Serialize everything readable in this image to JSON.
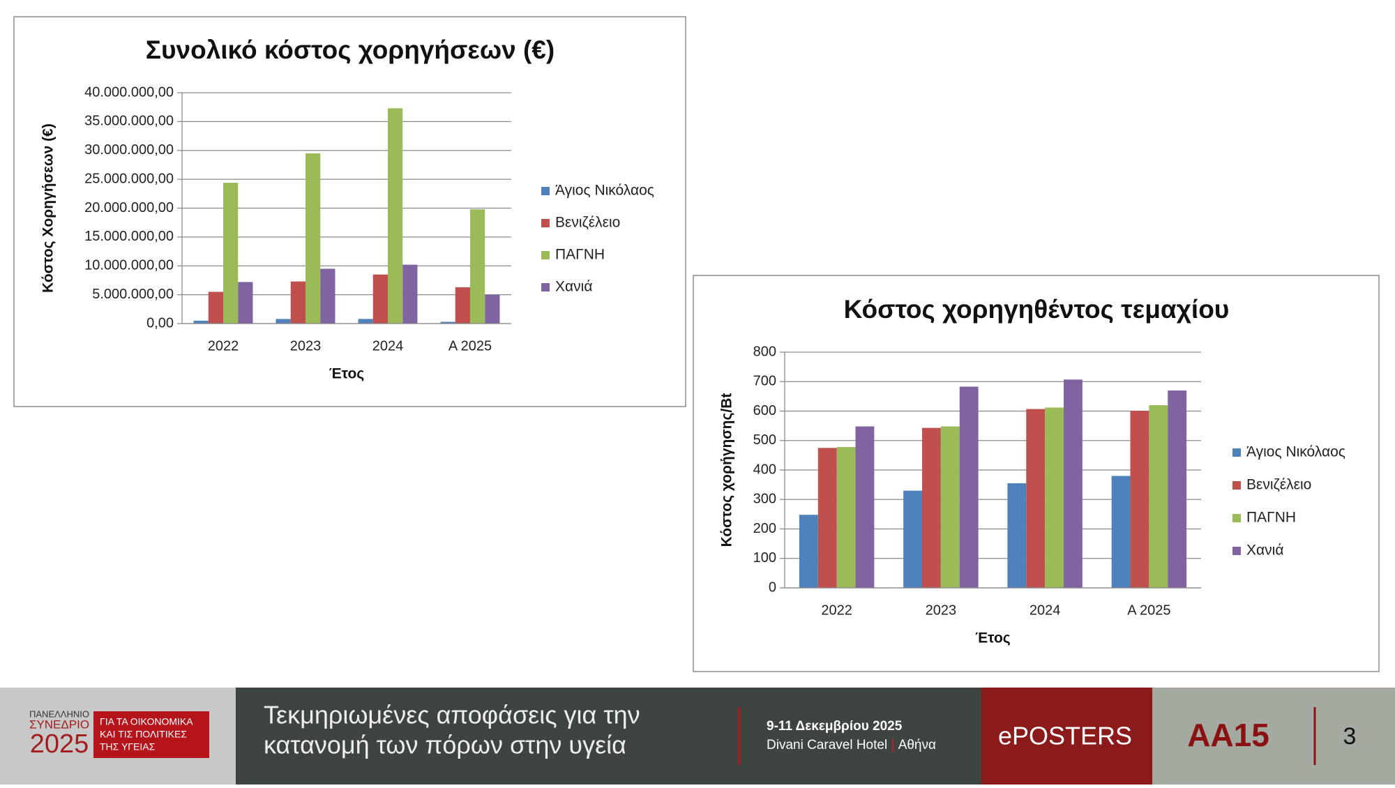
{
  "chart_data": [
    {
      "type": "bar",
      "title": "Συνολικό κόστος χορηγήσεων (€)",
      "x_label": "Έτος",
      "y_label": "Κόστος Χορηγήσεων (€)",
      "categories": [
        "2022",
        "2023",
        "2024",
        "Α 2025"
      ],
      "series": [
        {
          "name": "Άγιος Νικόλαος",
          "color": "#4f81bd",
          "values": [
            500000,
            800000,
            800000,
            300000
          ]
        },
        {
          "name": "Βενιζέλειο",
          "color": "#c0504d",
          "values": [
            5500000,
            7300000,
            8500000,
            6300000
          ]
        },
        {
          "name": "ΠΑΓΝΗ",
          "color": "#9bbb59",
          "values": [
            24400000,
            29500000,
            37300000,
            19800000
          ]
        },
        {
          "name": "Χανιά",
          "color": "#8064a2",
          "values": [
            7200000,
            9500000,
            10200000,
            5000000
          ]
        }
      ],
      "ylim": [
        0,
        40000000
      ],
      "yticks": [
        {
          "value": 0,
          "label": "0,00"
        },
        {
          "value": 5000000,
          "label": "5.000.000,00"
        },
        {
          "value": 10000000,
          "label": "10.000.000,00"
        },
        {
          "value": 15000000,
          "label": "15.000.000,00"
        },
        {
          "value": 20000000,
          "label": "20.000.000,00"
        },
        {
          "value": 25000000,
          "label": "25.000.000,00"
        },
        {
          "value": 30000000,
          "label": "30.000.000,00"
        },
        {
          "value": 35000000,
          "label": "35.000.000,00"
        },
        {
          "value": 40000000,
          "label": "40.000.000,00"
        }
      ],
      "grid": true,
      "legend": "right"
    },
    {
      "type": "bar",
      "title": "Κόστος χορηγηθέντος τεμαχίου",
      "x_label": "Έτος",
      "y_label": "Κόστος χορήγησης/Bt",
      "categories": [
        "2022",
        "2023",
        "2024",
        "Α 2025"
      ],
      "series": [
        {
          "name": "Άγιος Νικόλαος",
          "color": "#4f81bd",
          "values": [
            248,
            330,
            355,
            380
          ]
        },
        {
          "name": "Βενιζέλειο",
          "color": "#c0504d",
          "values": [
            475,
            543,
            607,
            601
          ]
        },
        {
          "name": "ΠΑΓΝΗ",
          "color": "#9bbb59",
          "values": [
            478,
            548,
            612,
            620
          ]
        },
        {
          "name": "Χανιά",
          "color": "#8064a2",
          "values": [
            548,
            683,
            707,
            670
          ]
        }
      ],
      "ylim": [
        0,
        800
      ],
      "yticks": [
        0,
        100,
        200,
        300,
        400,
        500,
        600,
        700,
        800
      ],
      "grid": true,
      "legend": "right"
    }
  ],
  "footer": {
    "logo_lines": [
      "ΠΑΝΕΛΛΗΝΙΟ",
      "ΣΥΝΕΔΡΙΟ",
      "2025"
    ],
    "logo_tagline": [
      "ΓΙΑ ΤΑ ΟΙΚΟΝΟΜΙΚΑ",
      "ΚΑΙ ΤΙΣ ΠΟΛΙΤΙΚΕΣ",
      "ΤΗΣ ΥΓΕΙΑΣ"
    ],
    "title_lines": [
      "Τεκμηριωμένες αποφάσεις για την",
      "κατανομή των πόρων στην υγεία"
    ],
    "date": "9-11 Δεκεμβρίου 2025",
    "venue": "Divani Caravel Hotel",
    "venue_separator": "|",
    "city": "Αθήνα",
    "section": "ePOSTERS",
    "code": "ΑΑ15",
    "page": "3"
  }
}
